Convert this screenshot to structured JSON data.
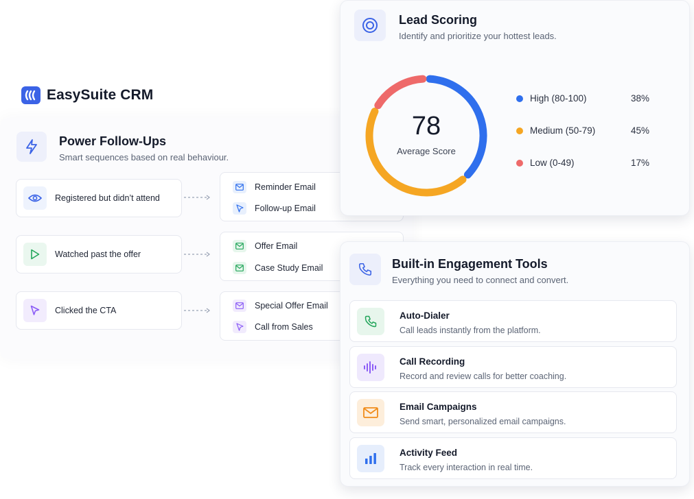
{
  "brand": {
    "name": "EasySuite CRM",
    "logo_color": "#3b63e6"
  },
  "followups": {
    "title": "Power Follow-Ups",
    "subtitle": "Smart sequences based on real behaviour.",
    "icon": "lightning-icon",
    "rules": [
      {
        "trigger": "Registered but didn’t attend",
        "trigger_icon": "eye-icon",
        "emails": [
          {
            "label": "Reminder Email",
            "icon": "mail-icon"
          },
          {
            "label": "Follow-up Email",
            "icon": "cursor-icon"
          }
        ]
      },
      {
        "trigger": "Watched past the offer",
        "trigger_icon": "play-icon",
        "emails": [
          {
            "label": "Offer Email",
            "icon": "mail-icon"
          },
          {
            "label": "Case Study Email",
            "icon": "mail-icon"
          }
        ]
      },
      {
        "trigger": "Clicked the CTA",
        "trigger_icon": "cursor-icon",
        "emails": [
          {
            "label": "Special Offer Email",
            "icon": "mail-icon"
          },
          {
            "label": "Call from Sales",
            "icon": "cursor-icon"
          }
        ]
      }
    ]
  },
  "lead_scoring": {
    "title": "Lead Scoring",
    "subtitle": "Identify and prioritize your hottest leads.",
    "icon": "target-icon",
    "score": "78",
    "score_label": "Average Score",
    "segments": [
      {
        "label": "High (80-100)",
        "percent": "38%",
        "value": 38,
        "color": "#2f6fed"
      },
      {
        "label": "Medium (50-79)",
        "percent": "45%",
        "value": 45,
        "color": "#f5a623"
      },
      {
        "label": "Low (0-49)",
        "percent": "17%",
        "value": 17,
        "color": "#ee6a6a"
      }
    ]
  },
  "engagement": {
    "title": "Built-in Engagement Tools",
    "subtitle": "Everything you need to connect and convert.",
    "icon": "phone-icon",
    "tools": [
      {
        "name": "Auto-Dialer",
        "desc": "Call leads instantly from the platform.",
        "icon": "phone-icon",
        "color": "#22a55a"
      },
      {
        "name": "Call Recording",
        "desc": "Record and review calls for better coaching.",
        "icon": "waveform-icon",
        "color": "#8b5cf6"
      },
      {
        "name": "Email Campaigns",
        "desc": "Send smart, personalized email campaigns.",
        "icon": "envelope-icon",
        "color": "#f08c1a"
      },
      {
        "name": "Activity Feed",
        "desc": "Track every interaction in real time.",
        "icon": "bar-chart-icon",
        "color": "#2f6fed"
      }
    ]
  }
}
